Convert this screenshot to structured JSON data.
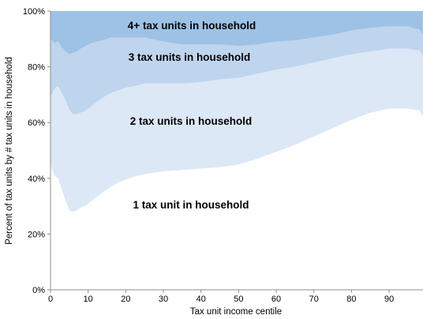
{
  "chart_data": {
    "type": "area",
    "stacked": true,
    "normalized_percent": true,
    "xlabel": "Tax unit income centile",
    "ylabel": "Percent of tax units by # tax units in household",
    "xlim": [
      0,
      99
    ],
    "ylim": [
      0,
      100
    ],
    "x_ticks": [
      0,
      10,
      20,
      30,
      40,
      50,
      60,
      70,
      80,
      90
    ],
    "y_ticks": [
      0,
      20,
      40,
      60,
      80,
      100
    ],
    "y_tick_labels": [
      "0%",
      "20%",
      "40%",
      "60%",
      "80%",
      "100%"
    ],
    "grid": false,
    "legend": "in-plot labels",
    "x": [
      0,
      1,
      2,
      3,
      4,
      5,
      6,
      7,
      8,
      9,
      10,
      12,
      14,
      16,
      18,
      20,
      22,
      25,
      30,
      35,
      40,
      45,
      50,
      55,
      60,
      65,
      70,
      75,
      80,
      85,
      90,
      95,
      97,
      98,
      99
    ],
    "series": [
      {
        "name": "1 tax unit in household",
        "color": "#ffffff",
        "values": [
          45,
          41,
          40,
          36,
          32,
          28.5,
          28,
          28.5,
          29.5,
          30,
          31,
          33,
          35,
          37,
          38.5,
          39.5,
          40.5,
          41.5,
          42.5,
          43,
          43.5,
          44,
          45,
          47,
          49.5,
          52,
          55,
          58,
          61,
          63.5,
          65,
          65,
          64.5,
          64.5,
          62
        ]
      },
      {
        "name": "2 tax units in household",
        "color": "#dde8f6",
        "values": [
          24,
          31,
          33,
          34.5,
          36,
          36,
          35,
          34.5,
          34,
          34,
          34,
          34,
          34,
          33.5,
          33,
          33,
          32.5,
          32.5,
          31.5,
          31,
          31,
          31.5,
          31,
          30.5,
          29.5,
          28,
          26.5,
          25,
          23.5,
          22,
          21.5,
          21.5,
          21.5,
          21.5,
          22
        ]
      },
      {
        "name": "3 tax units in household",
        "color": "#bfd5ee",
        "values": [
          21,
          16.5,
          16,
          16.5,
          17.5,
          20,
          22,
          22.5,
          23,
          23.2,
          23,
          22,
          20.5,
          20,
          19,
          18,
          17.5,
          16.5,
          15,
          14,
          13.5,
          12.5,
          11.5,
          10.5,
          10,
          9.5,
          9,
          8.5,
          8.5,
          8.5,
          8,
          8,
          7.5,
          7.5,
          7.5
        ]
      },
      {
        "name": "4+ tax units in household",
        "color": "#9ec2e6",
        "values": [
          10,
          11.5,
          11,
          13,
          14.5,
          15.5,
          15,
          14.5,
          13.5,
          12.8,
          12,
          11,
          10.5,
          9.5,
          9.5,
          9.5,
          9.5,
          9.5,
          11,
          12,
          12,
          12,
          12.5,
          12,
          11,
          10.5,
          9.5,
          8.5,
          7,
          6,
          5.5,
          5.5,
          6.5,
          6.5,
          8.5
        ]
      }
    ]
  }
}
